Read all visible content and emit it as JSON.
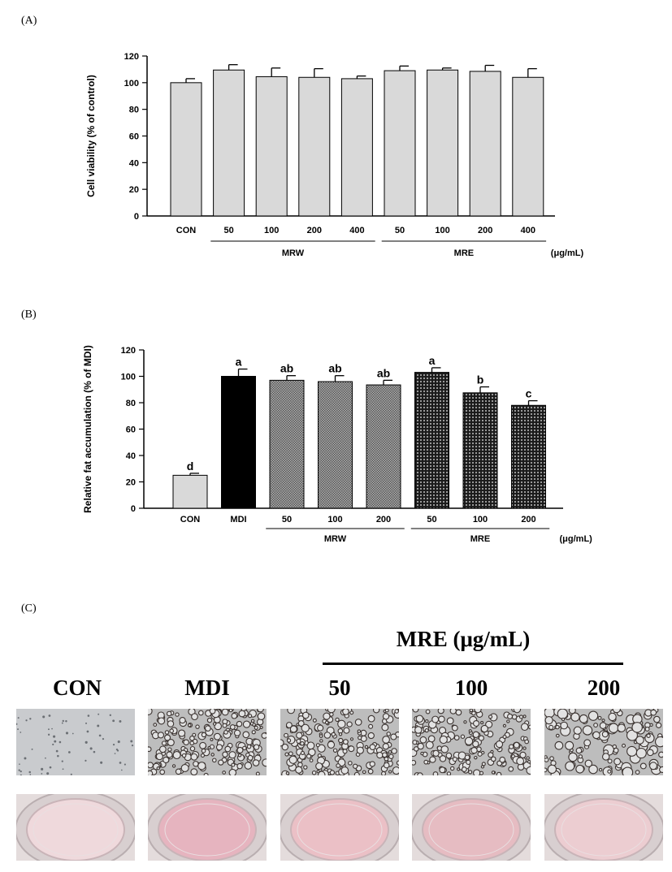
{
  "panels": {
    "a_label": "(A)",
    "b_label": "(B)",
    "c_label": "(C)"
  },
  "colors": {
    "bar_light": "#d9d9d9",
    "bar_black": "#000000",
    "bar_mrw": "#8c8c8c",
    "bar_mre": "#3a3a3a"
  },
  "chart_data": [
    {
      "type": "bar",
      "panel": "(A)",
      "ylabel": "Cell viability (% of control)",
      "ylim": [
        0,
        120
      ],
      "yticks": [
        0,
        20,
        40,
        60,
        80,
        100,
        120
      ],
      "categories": [
        "CON",
        "50",
        "100",
        "200",
        "400",
        "50",
        "100",
        "200",
        "400"
      ],
      "values": [
        100,
        109.5,
        104.5,
        104,
        103,
        109,
        109.5,
        108.5,
        104
      ],
      "errors": [
        3,
        4,
        6.5,
        6.5,
        2,
        3.5,
        1.5,
        4.5,
        6.5
      ],
      "fill": [
        "light",
        "light",
        "light",
        "light",
        "light",
        "light",
        "light",
        "light",
        "light"
      ],
      "groups": [
        {
          "label": "MRW",
          "from": 1,
          "to": 4
        },
        {
          "label": "MRE",
          "from": 5,
          "to": 8
        }
      ],
      "unit": "(μg/mL)",
      "grid": false
    },
    {
      "type": "bar",
      "panel": "(B)",
      "ylabel": "Relative fat accumulation (% of MDI)",
      "ylim": [
        0,
        120
      ],
      "yticks": [
        0,
        20,
        40,
        60,
        80,
        100,
        120
      ],
      "categories": [
        "CON",
        "MDI",
        "50",
        "100",
        "200",
        "50",
        "100",
        "200"
      ],
      "values": [
        25,
        100,
        97,
        96,
        93.5,
        103,
        87.5,
        78
      ],
      "errors": [
        1.5,
        5.5,
        3.5,
        4.5,
        3.5,
        3.5,
        4.5,
        3.5
      ],
      "significance": [
        "d",
        "a",
        "ab",
        "ab",
        "ab",
        "a",
        "b",
        "c"
      ],
      "fill": [
        "light",
        "black",
        "mrw",
        "mrw",
        "mrw",
        "mre",
        "mre",
        "mre"
      ],
      "groups": [
        {
          "label": "MRW",
          "from": 2,
          "to": 4
        },
        {
          "label": "MRE",
          "from": 5,
          "to": 7
        }
      ],
      "unit": "(μg/mL)",
      "grid": false
    }
  ],
  "photos": {
    "group_title": "MRE (μg/mL)",
    "headers": [
      "CON",
      "MDI",
      "50",
      "100",
      "200"
    ],
    "microscopy_density": [
      0.15,
      1.0,
      0.95,
      0.85,
      0.6
    ],
    "well_tints": [
      "#efd9dc",
      "#e6b4bf",
      "#ebc0c6",
      "#e6bcc2",
      "#eccdd1"
    ]
  }
}
